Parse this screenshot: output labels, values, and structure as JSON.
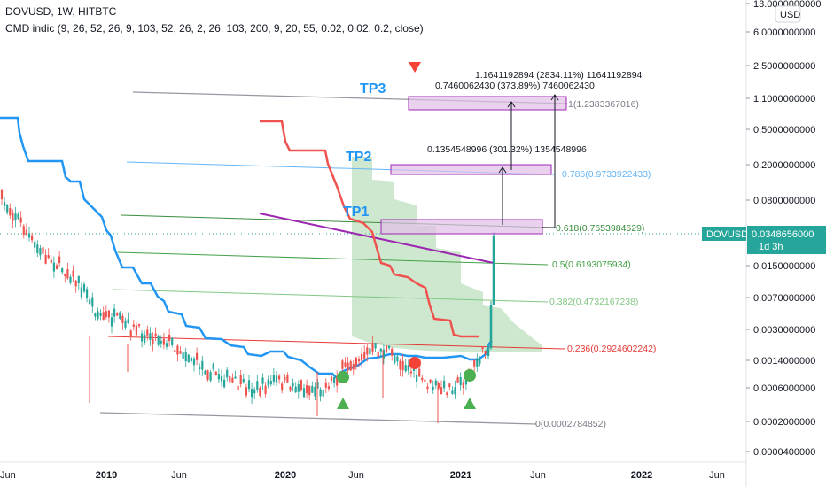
{
  "header": {
    "symbol_line": "DOVUSD, 1W, HITBTC",
    "indicator_line": "CMD indic (9, 26, 52, 26, 9, 103, 52, 26, 2, 26, 103, 200, 9, 20, 55, 0.02, 0.02, 0.2, close)"
  },
  "currency_button": "USD",
  "price_badge": {
    "symbol": "DOVUSD",
    "price": "0.0348656000",
    "countdown": "1d 3h"
  },
  "colors": {
    "up": "#26a69a",
    "down": "#ef5350",
    "baseline": "#2196f3",
    "lagging": "#ef5350",
    "cloud": "#a5d6a7",
    "trend": "#9c27b0",
    "tp_box": "#e1bee7"
  },
  "chart_data": {
    "type": "candlestick",
    "yscale": "log",
    "y_ticks": [
      "13.0000000000",
      "6.0000000000",
      "2.5000000000",
      "1.1000000000",
      "0.5000000000",
      "0.2000000000",
      "0.0800000000",
      "0.0348656000",
      "0.0150000000",
      "0.0070000000",
      "0.0030000000",
      "0.0014000000",
      "0.0006000000",
      "0.0002000000",
      "0.0000400000"
    ],
    "x_ticks": [
      "Jun",
      "2019",
      "Jun",
      "2020",
      "Jun",
      "2021",
      "Jun",
      "2022",
      "Jun"
    ],
    "fib_levels": [
      {
        "label": "1(1.2383367016)",
        "color": "#787b86"
      },
      {
        "label": "0.786(0.9733922433)",
        "color": "#64b5f6"
      },
      {
        "label": "0.618(0.7653984629)",
        "color": "#388e3c"
      },
      {
        "label": "0.5(0.6193075934)",
        "color": "#43a047"
      },
      {
        "label": "0.382(0.4732167238)",
        "color": "#81c784"
      },
      {
        "label": "0.236(0.2924602242)",
        "color": "#e53935"
      },
      {
        "label": "0(0.0002784852)",
        "color": "#787b86"
      }
    ],
    "targets": [
      {
        "label": "TP1"
      },
      {
        "label": "TP2"
      },
      {
        "label": "TP3"
      }
    ],
    "measurements": [
      {
        "text": "1.1641192894 (2834.11%) 11641192894"
      },
      {
        "text": "0.7460062430 (373.89%) 7460062430"
      },
      {
        "text": "0.1354548996 (301.32%) 1354548996"
      }
    ]
  }
}
